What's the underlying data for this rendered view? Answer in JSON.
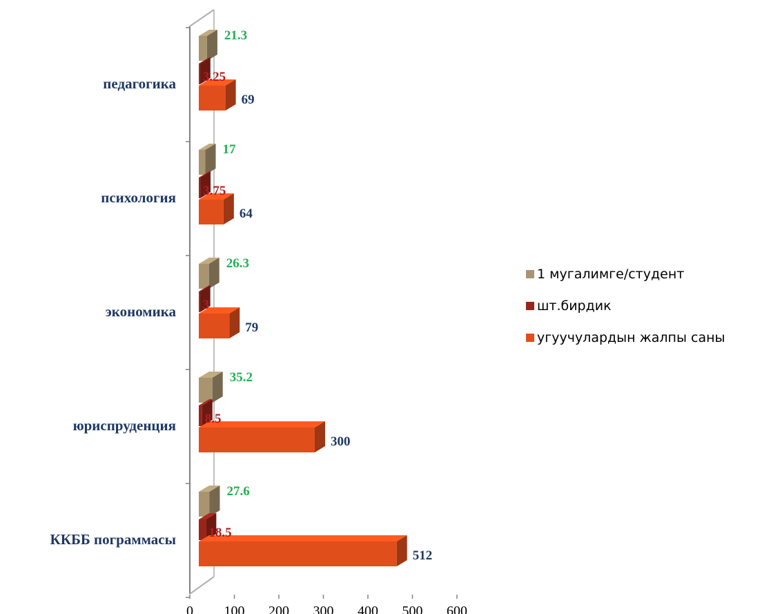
{
  "chart_data": {
    "type": "bar",
    "orientation": "horizontal",
    "three_d": true,
    "categories": [
      "педагогика",
      "психология",
      "экономика",
      "юриспруденция",
      "ККББ пограммасы"
    ],
    "series": [
      {
        "name": "1 мугалимге/студент",
        "values": [
          21.3,
          17,
          26.3,
          35.2,
          27.6
        ],
        "labels": [
          "21.3",
          "17",
          "26.3",
          "35.2",
          "27.6"
        ],
        "color": "#a89570",
        "label_color": "#20b050"
      },
      {
        "name": "шт.бирдик",
        "values": [
          3.25,
          3.75,
          3,
          8.5,
          18.5
        ],
        "labels": [
          "3.25",
          "3.75",
          "3",
          "8.5",
          "18.5"
        ],
        "color": "#9a2418",
        "label_color": "#b01e1e"
      },
      {
        "name": "угуучулардын жалпы саны",
        "values": [
          69,
          64,
          79,
          300,
          512
        ],
        "labels": [
          "69",
          "64",
          "79",
          "300",
          "512"
        ],
        "color": "#e04e1c",
        "label_color": "#1f3864"
      }
    ],
    "x_ticks": [
      "0",
      "100",
      "200",
      "300",
      "400",
      "500",
      "600"
    ],
    "xlim": [
      0,
      600
    ],
    "grid": false,
    "legend_position": "right"
  }
}
